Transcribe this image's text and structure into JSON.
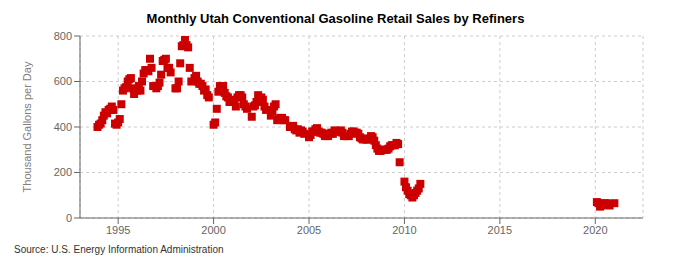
{
  "chart_data": {
    "type": "scatter",
    "title": "Monthly Utah Conventional Gasoline Retail Sales by Refiners",
    "ylabel": "Thousand Gallons per Day",
    "annotation": "Source: U.S. Energy Information Administration",
    "color": "#cc0000",
    "marker": "square",
    "grid": true,
    "xlim": [
      1993.0,
      2022.5
    ],
    "xticks": [
      1995,
      2000,
      2005,
      2010,
      2015,
      2020
    ],
    "ylim": [
      0,
      800
    ],
    "yticks": [
      0,
      200,
      400,
      600,
      800
    ],
    "x": [
      1993.917,
      1994.0,
      1994.083,
      1994.167,
      1994.25,
      1994.333,
      1994.417,
      1994.5,
      1994.583,
      1994.667,
      1994.75,
      1994.833,
      1994.917,
      1995.0,
      1995.083,
      1995.167,
      1995.25,
      1995.333,
      1995.417,
      1995.5,
      1995.583,
      1995.667,
      1995.75,
      1995.833,
      1996.0,
      1996.083,
      1996.167,
      1996.25,
      1996.333,
      1996.417,
      1996.5,
      1996.583,
      1996.667,
      1996.75,
      1996.833,
      1997.0,
      1997.083,
      1997.167,
      1997.25,
      1997.333,
      1997.417,
      1997.5,
      1997.583,
      1997.667,
      1997.75,
      1998.0,
      1998.083,
      1998.167,
      1998.25,
      1998.333,
      1998.417,
      1998.5,
      1998.583,
      1998.667,
      1998.75,
      1998.833,
      1999.0,
      1999.083,
      1999.167,
      1999.25,
      1999.333,
      1999.417,
      1999.5,
      1999.583,
      1999.667,
      1999.75,
      2000.0,
      2000.083,
      2000.167,
      2000.25,
      2000.333,
      2000.417,
      2000.5,
      2000.583,
      2000.667,
      2000.75,
      2000.833,
      2001.0,
      2001.083,
      2001.167,
      2001.25,
      2001.333,
      2001.417,
      2001.5,
      2001.583,
      2001.667,
      2001.75,
      2002.0,
      2002.083,
      2002.167,
      2002.25,
      2002.333,
      2002.417,
      2002.5,
      2002.583,
      2002.667,
      2002.75,
      2003.0,
      2003.083,
      2003.167,
      2003.25,
      2003.333,
      2003.417,
      2003.5,
      2003.583,
      2003.667,
      2003.75,
      2004.0,
      2004.083,
      2004.167,
      2004.25,
      2004.333,
      2004.417,
      2004.5,
      2004.583,
      2004.667,
      2004.75,
      2005.0,
      2005.083,
      2005.167,
      2005.25,
      2005.333,
      2005.417,
      2005.5,
      2005.583,
      2005.667,
      2005.75,
      2005.833,
      2006.0,
      2006.083,
      2006.167,
      2006.25,
      2006.333,
      2006.417,
      2006.5,
      2006.583,
      2006.667,
      2006.75,
      2006.833,
      2007.0,
      2007.083,
      2007.167,
      2007.25,
      2007.333,
      2007.417,
      2007.5,
      2007.583,
      2007.667,
      2007.75,
      2007.833,
      2008.0,
      2008.083,
      2008.167,
      2008.25,
      2008.333,
      2008.417,
      2008.5,
      2008.583,
      2008.667,
      2008.75,
      2008.833,
      2009.0,
      2009.083,
      2009.167,
      2009.25,
      2009.333,
      2009.417,
      2009.5,
      2009.583,
      2009.667,
      2009.75,
      2010.0,
      2010.083,
      2010.167,
      2010.25,
      2010.333,
      2010.417,
      2010.5,
      2010.583,
      2010.667,
      2010.75,
      2010.833,
      2020.083,
      2020.167,
      2020.25,
      2020.333,
      2020.417,
      2020.5,
      2020.583,
      2020.667,
      2020.75,
      2021.0
    ],
    "values": [
      400,
      410,
      415,
      430,
      450,
      465,
      460,
      475,
      480,
      490,
      475,
      415,
      410,
      420,
      435,
      500,
      560,
      570,
      575,
      600,
      610,
      615,
      570,
      545,
      560,
      580,
      560,
      600,
      635,
      650,
      650,
      645,
      700,
      660,
      580,
      570,
      580,
      595,
      630,
      690,
      695,
      700,
      660,
      660,
      640,
      570,
      570,
      600,
      680,
      755,
      760,
      795,
      760,
      750,
      660,
      600,
      615,
      625,
      600,
      590,
      590,
      580,
      560,
      565,
      540,
      530,
      410,
      420,
      480,
      555,
      580,
      570,
      580,
      550,
      535,
      530,
      510,
      510,
      520,
      490,
      530,
      540,
      540,
      530,
      500,
      490,
      480,
      445,
      490,
      495,
      510,
      540,
      510,
      530,
      520,
      490,
      475,
      450,
      470,
      490,
      500,
      430,
      435,
      440,
      440,
      430,
      430,
      400,
      400,
      405,
      390,
      385,
      390,
      375,
      385,
      380,
      370,
      355,
      365,
      380,
      380,
      390,
      395,
      380,
      375,
      375,
      370,
      360,
      360,
      370,
      375,
      370,
      385,
      380,
      380,
      380,
      385,
      375,
      360,
      360,
      360,
      370,
      380,
      380,
      375,
      375,
      370,
      355,
      350,
      345,
      345,
      345,
      350,
      360,
      355,
      340,
      320,
      305,
      295,
      295,
      300,
      300,
      300,
      305,
      315,
      320,
      320,
      320,
      330,
      325,
      245,
      160,
      135,
      120,
      105,
      100,
      90,
      100,
      110,
      120,
      130,
      150,
      70,
      65,
      50,
      55,
      60,
      65,
      65,
      60,
      55,
      65
    ]
  }
}
